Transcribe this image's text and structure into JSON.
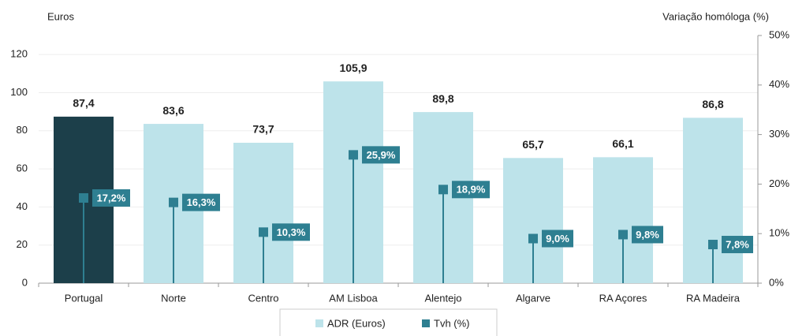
{
  "chart_data": {
    "type": "combo",
    "y_axis_label": "Euros",
    "y2_axis_label": "Variação homóloga (%)",
    "categories": [
      "Portugal",
      "Norte",
      "Centro",
      "AM Lisboa",
      "Alentejo",
      "Algarve",
      "RA Açores",
      "RA Madeira"
    ],
    "series": [
      {
        "name": "ADR (Euros)",
        "type": "bar",
        "color": "#bde3ea",
        "colors": [
          "#1c3f4a",
          "#bde3ea",
          "#bde3ea",
          "#bde3ea",
          "#bde3ea",
          "#bde3ea",
          "#bde3ea",
          "#bde3ea"
        ],
        "values": [
          87.4,
          83.6,
          73.7,
          105.9,
          89.8,
          65.7,
          66.1,
          86.8
        ],
        "value_labels": [
          "87,4",
          "83,6",
          "73,7",
          "105,9",
          "89,8",
          "65,7",
          "66,1",
          "86,8"
        ]
      },
      {
        "name": "Tvh (%)",
        "type": "lollipop",
        "axis": "y2",
        "color": "#2e7f91",
        "values": [
          17.2,
          16.3,
          10.3,
          25.9,
          18.9,
          9.0,
          9.8,
          7.8
        ],
        "value_labels": [
          "17,2%",
          "16,3%",
          "10,3%",
          "25,9%",
          "18,9%",
          "9,0%",
          "9,8%",
          "7,8%"
        ]
      }
    ],
    "ylim": [
      0,
      130
    ],
    "yticks": [
      0,
      20,
      40,
      60,
      80,
      100,
      120
    ],
    "y2lim": [
      0,
      50
    ],
    "y2ticks": [
      {
        "value": 0,
        "label": "0%"
      },
      {
        "value": 10,
        "label": "10%"
      },
      {
        "value": 20,
        "label": "20%"
      },
      {
        "value": 30,
        "label": "30%"
      },
      {
        "value": 40,
        "label": "40%"
      },
      {
        "value": 50,
        "label": "50%"
      }
    ],
    "grid": true
  }
}
